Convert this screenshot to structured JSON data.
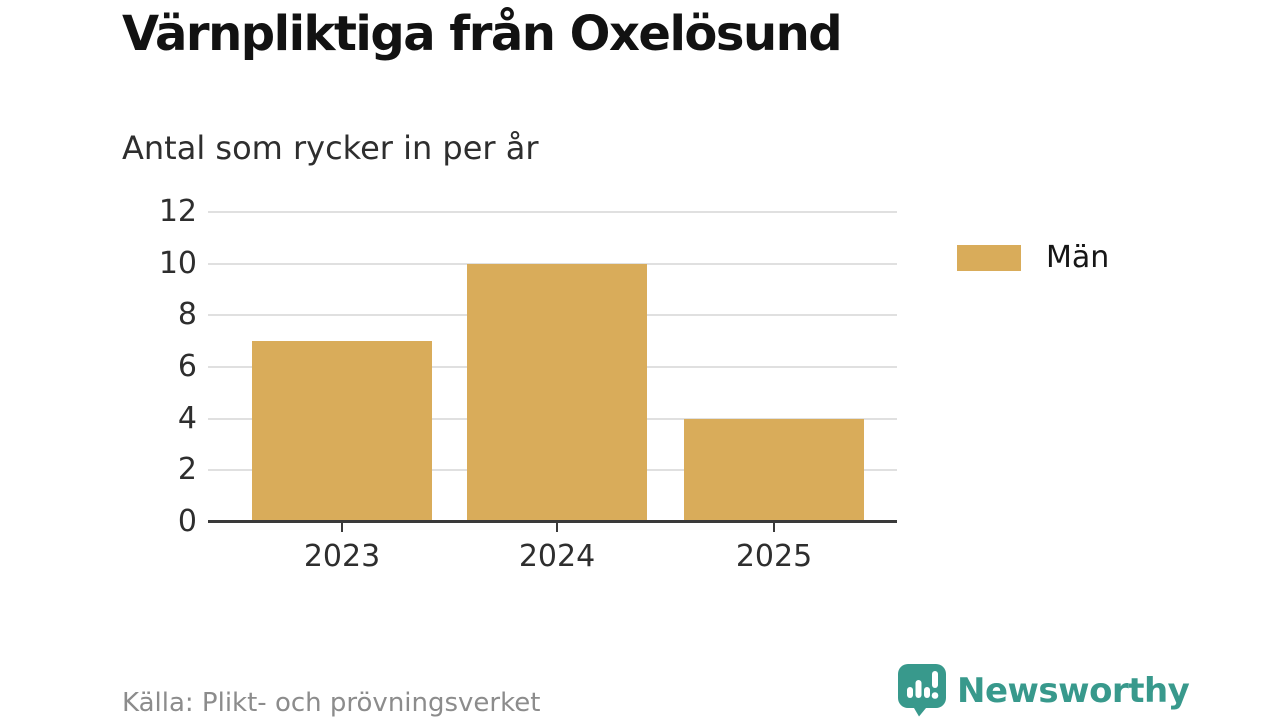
{
  "title": "Värnpliktiga från Oxelösund",
  "subtitle": "Antal som rycker in per år",
  "source": "Källa: Plikt- och prövningsverket",
  "brand": {
    "name": "Newsworthy",
    "color": "#38998C",
    "icon": "newsworthy-chart-bubble-icon"
  },
  "colors": {
    "bar": "#D9AC5A",
    "gridline": "#E0E0E0",
    "axis": "#3A3A3A",
    "title_text": "#121212",
    "tick_text": "#2E2E2E",
    "source_text": "#8C8C8C"
  },
  "chart_data": {
    "type": "bar",
    "categories": [
      "2023",
      "2024",
      "2025"
    ],
    "series": [
      {
        "name": "Män",
        "values": [
          7,
          10,
          4
        ]
      }
    ],
    "title": "Värnpliktiga från Oxelösund",
    "subtitle": "Antal som rycker in per år",
    "xlabel": "",
    "ylabel": "",
    "ylim": [
      0,
      12
    ],
    "ytick_step": 2,
    "grid": true,
    "legend_position": "right"
  }
}
